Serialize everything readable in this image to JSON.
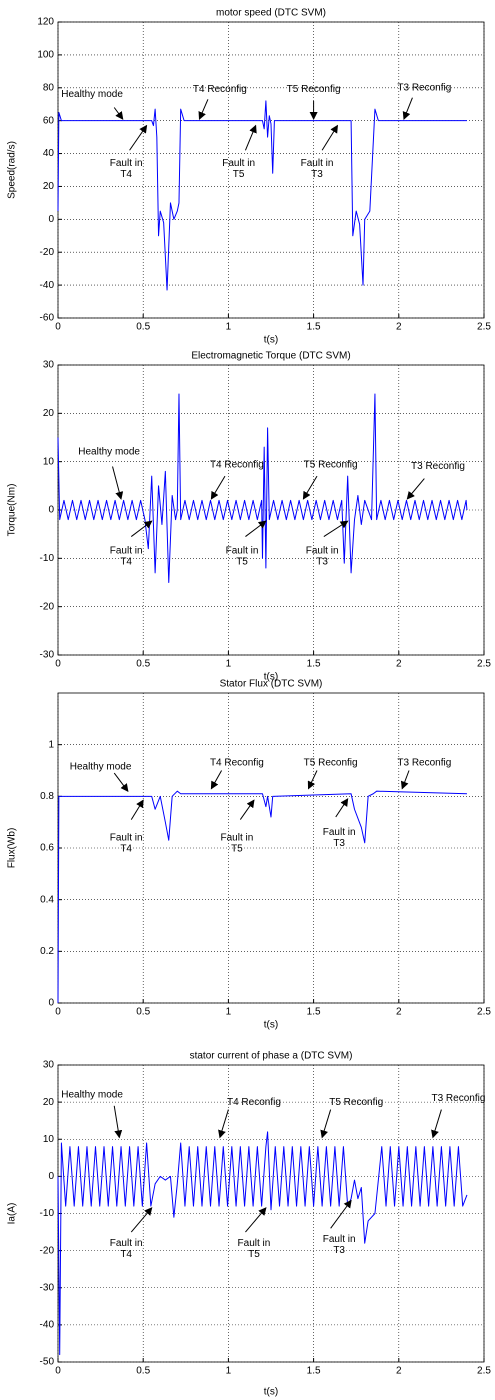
{
  "chart_data": [
    {
      "type": "line",
      "title": "motor speed (DTC SVM)",
      "xlabel": "t(s)",
      "ylabel": "Speed(rad/s)",
      "xlim": [
        0,
        2.5
      ],
      "xticks": [
        0,
        0.5,
        1,
        1.5,
        2,
        2.5
      ],
      "ylim": [
        -60,
        120
      ],
      "yticks": [
        -60,
        -40,
        -20,
        0,
        20,
        40,
        60,
        80,
        100,
        120
      ],
      "grid": true,
      "series": [
        {
          "color": "#0000ff",
          "x": [
            0,
            0.005,
            0.02,
            0.55,
            0.56,
            0.57,
            0.58,
            0.59,
            0.6,
            0.62,
            0.64,
            0.66,
            0.68,
            0.7,
            0.71,
            0.72,
            0.74,
            1.2,
            1.21,
            1.22,
            1.23,
            1.24,
            1.25,
            1.26,
            1.27,
            1.72,
            1.73,
            1.75,
            1.77,
            1.79,
            1.8,
            1.83,
            1.86,
            1.88,
            2.4
          ],
          "values": [
            5,
            65,
            60,
            60,
            57,
            67,
            50,
            -10,
            5,
            -2,
            -43,
            10,
            0,
            5,
            10,
            67,
            60,
            60,
            55,
            72,
            50,
            63,
            58,
            28,
            60,
            60,
            -10,
            5,
            -3,
            -40,
            0,
            5,
            67,
            60,
            60
          ]
        }
      ],
      "annotations": [
        {
          "text": "Healthy mode"
        },
        {
          "text": "T4 Reconfig"
        },
        {
          "text": "T5 Reconfig"
        },
        {
          "text": "T3 Reconfig"
        },
        {
          "text": [
            "Fault in",
            "T4"
          ]
        },
        {
          "text": [
            "Fault in",
            "T5"
          ]
        },
        {
          "text": [
            "Fault in",
            "T3"
          ]
        }
      ]
    },
    {
      "type": "line",
      "title": "Electromagnetic Torque (DTC SVM)",
      "xlabel": "t(s)",
      "ylabel": "Torque(Nm)",
      "xlim": [
        0,
        2.5
      ],
      "xticks": [
        0,
        0.5,
        1,
        1.5,
        2,
        2.5
      ],
      "ylim": [
        -30,
        30
      ],
      "yticks": [
        -30,
        -20,
        -10,
        0,
        10,
        20,
        30
      ],
      "grid": true,
      "series": [
        {
          "color": "#0000ff",
          "x": [
            0,
            0.01,
            0.035,
            0.06,
            0.085,
            0.11,
            0.135,
            0.16,
            0.185,
            0.21,
            0.235,
            0.26,
            0.285,
            0.31,
            0.335,
            0.36,
            0.385,
            0.41,
            0.435,
            0.46,
            0.485,
            0.51,
            0.53,
            0.55,
            0.57,
            0.59,
            0.61,
            0.63,
            0.65,
            0.67,
            0.69,
            0.7,
            0.71,
            0.72,
            0.745,
            0.77,
            0.795,
            0.82,
            0.845,
            0.87,
            0.895,
            0.92,
            0.945,
            0.97,
            0.995,
            1.02,
            1.045,
            1.07,
            1.095,
            1.12,
            1.145,
            1.17,
            1.195,
            1.2,
            1.21,
            1.22,
            1.23,
            1.24,
            1.265,
            1.29,
            1.315,
            1.34,
            1.365,
            1.39,
            1.415,
            1.44,
            1.465,
            1.49,
            1.515,
            1.54,
            1.565,
            1.59,
            1.615,
            1.64,
            1.665,
            1.68,
            1.7,
            1.72,
            1.74,
            1.76,
            1.78,
            1.8,
            1.84,
            1.86,
            1.87,
            1.895,
            1.92,
            1.945,
            1.97,
            1.995,
            2.02,
            2.045,
            2.07,
            2.095,
            2.12,
            2.145,
            2.17,
            2.195,
            2.22,
            2.245,
            2.27,
            2.295,
            2.32,
            2.345,
            2.37,
            2.395,
            2.4
          ],
          "values": [
            15,
            -2,
            2,
            -2,
            2,
            -2,
            2,
            -2,
            2,
            -2,
            2,
            -2,
            2,
            -2,
            2,
            -2,
            2,
            -2,
            2,
            -2,
            2,
            -2,
            -8,
            7,
            -13,
            5,
            -3,
            8,
            -15,
            3,
            -2,
            0,
            24,
            -2,
            2,
            -2,
            2,
            -2,
            2,
            -2,
            2,
            -2,
            2,
            -2,
            2,
            -2,
            2,
            -2,
            2,
            -2,
            2,
            -2,
            2,
            -10,
            13,
            -12,
            17,
            -2,
            2,
            -2,
            2,
            -2,
            2,
            -2,
            2,
            -2,
            2,
            -2,
            2,
            -2,
            2,
            -2,
            2,
            -2,
            2,
            -11,
            7,
            -13,
            -2,
            3,
            -3,
            2,
            -2,
            24,
            -2,
            2,
            -2,
            2,
            -2,
            2,
            -2,
            2,
            -2,
            2,
            -2,
            2,
            -2,
            2,
            -2,
            2,
            -2,
            2,
            -2,
            2,
            -2,
            2,
            0
          ]
        }
      ],
      "annotations": [
        {
          "text": "Healthy mode"
        },
        {
          "text": "T4 Reconfig"
        },
        {
          "text": "T5 Reconfig"
        },
        {
          "text": "T3 Reconfig"
        },
        {
          "text": [
            "Fault in",
            "T4"
          ]
        },
        {
          "text": [
            "Fault in",
            "T5"
          ]
        },
        {
          "text": [
            "Fault in",
            "T3"
          ]
        }
      ]
    },
    {
      "type": "line",
      "title": "Stator Flux (DTC SVM)",
      "xlabel": "t(s)",
      "ylabel": "Flux(Wb)",
      "xlim": [
        0,
        2.5
      ],
      "xticks": [
        0,
        0.5,
        1,
        1.5,
        2,
        2.5
      ],
      "ylim": [
        0,
        1.2
      ],
      "yticks": [
        0,
        0.2,
        0.4,
        0.6,
        0.8,
        1
      ],
      "grid": true,
      "series": [
        {
          "color": "#0000ff",
          "x": [
            0,
            0.005,
            0.55,
            0.57,
            0.6,
            0.63,
            0.65,
            0.67,
            0.7,
            0.72,
            1.2,
            1.22,
            1.23,
            1.25,
            1.26,
            1.72,
            1.74,
            1.78,
            1.8,
            1.82,
            1.85,
            1.87,
            2.4
          ],
          "values": [
            0,
            0.8,
            0.8,
            0.75,
            0.8,
            0.7,
            0.63,
            0.8,
            0.82,
            0.81,
            0.81,
            0.76,
            0.8,
            0.72,
            0.8,
            0.81,
            0.75,
            0.68,
            0.62,
            0.8,
            0.81,
            0.82,
            0.81
          ]
        }
      ],
      "annotations": [
        {
          "text": "Healthy mode"
        },
        {
          "text": "T4 Reconfig"
        },
        {
          "text": "T5 Reconfig"
        },
        {
          "text": "T3 Reconfig"
        },
        {
          "text": [
            "Fault in",
            "T4"
          ]
        },
        {
          "text": [
            "Fault in",
            "T5"
          ]
        },
        {
          "text": [
            "Fault in",
            "T3"
          ]
        }
      ]
    },
    {
      "type": "line",
      "title": "stator current of phase a (DTC SVM)",
      "xlabel": "t(s)",
      "ylabel": "Ia(A)",
      "xlim": [
        0,
        2.5
      ],
      "xticks": [
        0,
        0.5,
        1,
        1.5,
        2,
        2.5
      ],
      "ylim": [
        -50,
        30
      ],
      "yticks": [
        -50,
        -40,
        -30,
        -20,
        -10,
        0,
        10,
        20,
        30
      ],
      "grid": true,
      "series": [
        {
          "color": "#0000ff",
          "x": [
            0,
            0.01,
            0.02,
            0.045,
            0.07,
            0.095,
            0.12,
            0.145,
            0.17,
            0.195,
            0.22,
            0.245,
            0.27,
            0.295,
            0.32,
            0.345,
            0.37,
            0.395,
            0.42,
            0.445,
            0.47,
            0.495,
            0.52,
            0.545,
            0.57,
            0.6,
            0.63,
            0.66,
            0.68,
            0.7,
            0.72,
            0.745,
            0.77,
            0.795,
            0.82,
            0.845,
            0.87,
            0.895,
            0.92,
            0.945,
            0.97,
            0.995,
            1.02,
            1.045,
            1.07,
            1.095,
            1.12,
            1.145,
            1.17,
            1.195,
            1.22,
            1.23,
            1.25,
            1.275,
            1.3,
            1.325,
            1.35,
            1.375,
            1.4,
            1.425,
            1.45,
            1.475,
            1.5,
            1.525,
            1.55,
            1.575,
            1.6,
            1.625,
            1.65,
            1.675,
            1.7,
            1.72,
            1.74,
            1.76,
            1.78,
            1.8,
            1.82,
            1.86,
            1.9,
            1.925,
            1.95,
            1.975,
            2,
            2.025,
            2.05,
            2.075,
            2.1,
            2.125,
            2.15,
            2.175,
            2.2,
            2.225,
            2.25,
            2.275,
            2.3,
            2.325,
            2.35,
            2.375,
            2.4
          ],
          "values": [
            0,
            -48,
            9,
            -8,
            8,
            -8,
            8,
            -8,
            8,
            -8,
            8,
            -8,
            8,
            -8,
            8,
            -8,
            8,
            -8,
            8,
            -8,
            8,
            -8,
            9,
            -8,
            -2,
            0,
            -1,
            0,
            -11,
            -2,
            9,
            -8,
            8,
            -8,
            8,
            -8,
            8,
            -8,
            8,
            -8,
            8,
            -8,
            8,
            -8,
            8,
            -8,
            8,
            -8,
            8,
            -8,
            8,
            12,
            -9,
            8,
            -8,
            8,
            -8,
            8,
            -8,
            8,
            -8,
            8,
            -8,
            8,
            -8,
            8,
            -8,
            8,
            -8,
            8,
            -8,
            -6,
            -1,
            -6,
            -3,
            -18,
            -12,
            -10,
            8,
            -8,
            8,
            -8,
            8,
            -8,
            8,
            -8,
            8,
            -8,
            8,
            -8,
            8,
            -8,
            8,
            -8,
            8,
            -8,
            8,
            -8,
            -5
          ]
        }
      ],
      "annotations": [
        {
          "text": "Healthy mode"
        },
        {
          "text": "T4 Reconfig"
        },
        {
          "text": "T5 Reconfig"
        },
        {
          "text": "T3 Reconfig"
        },
        {
          "text": [
            "Fault in",
            "T4"
          ]
        },
        {
          "text": [
            "Fault in",
            "T5"
          ]
        },
        {
          "text": [
            "Fault in",
            "T3"
          ]
        }
      ]
    }
  ]
}
